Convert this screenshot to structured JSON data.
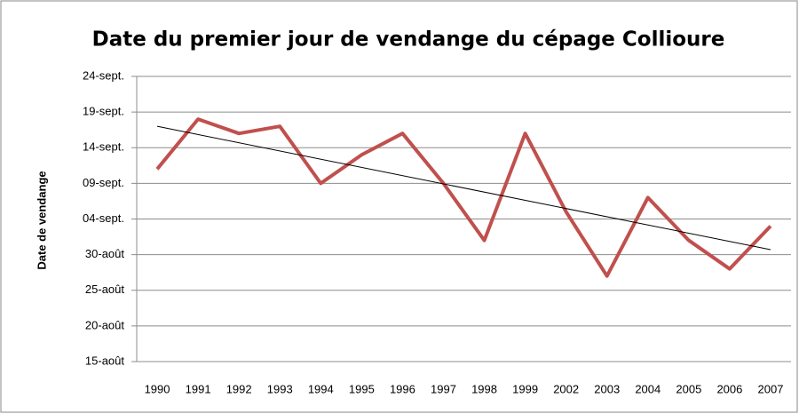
{
  "chart_data": {
    "type": "line",
    "title": "Date du premier jour de vendange du cépage Collioure",
    "y_label": "Date de vendange",
    "categories": [
      "1990",
      "1991",
      "1992",
      "1993",
      "1994",
      "1995",
      "1996",
      "1997",
      "1998",
      "1999",
      "2002",
      "2003",
      "2004",
      "2005",
      "2006",
      "2007"
    ],
    "series": [
      {
        "name": "Collioure",
        "color": "#c0504d",
        "values": [
          254,
          261,
          259,
          260,
          252,
          256,
          259,
          252,
          244,
          259,
          248,
          239,
          250,
          244,
          240,
          246
        ]
      }
    ],
    "trendline": {
      "color": "#000000",
      "values": [
        260,
        242.7
      ]
    },
    "ylim": [
      227,
      267
    ],
    "yticks": [
      {
        "value": 227,
        "label": "15-août"
      },
      {
        "value": 232,
        "label": "20-août"
      },
      {
        "value": 237,
        "label": "25-août"
      },
      {
        "value": 242,
        "label": "30-août"
      },
      {
        "value": 247,
        "label": "04-sept."
      },
      {
        "value": 252,
        "label": "09-sept."
      },
      {
        "value": 257,
        "label": "14-sept."
      },
      {
        "value": 262,
        "label": "19-sept."
      },
      {
        "value": 267,
        "label": "24-sept."
      }
    ],
    "grid": true
  }
}
